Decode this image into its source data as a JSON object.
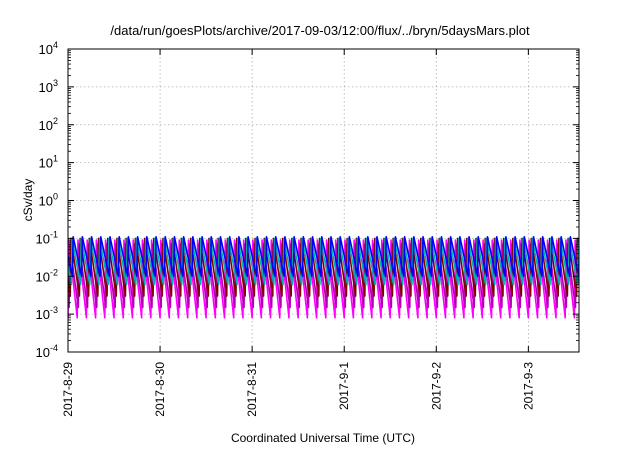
{
  "chart_data": {
    "type": "line",
    "title": "/data/run/goesPlots/archive/2017-09-03/12:00/flux/../bryn/5daysMars.plot",
    "xlabel": "Coordinated Universal Time (UTC)",
    "ylabel": "cSv/day",
    "yscale": "log",
    "ylim": [
      "1e-4",
      "1e4"
    ],
    "y_ticks": [
      {
        "base": "10",
        "exp": "4"
      },
      {
        "base": "10",
        "exp": "3"
      },
      {
        "base": "10",
        "exp": "2"
      },
      {
        "base": "10",
        "exp": "1"
      },
      {
        "base": "10",
        "exp": "0"
      },
      {
        "base": "10",
        "exp": "-1"
      },
      {
        "base": "10",
        "exp": "-2"
      },
      {
        "base": "10",
        "exp": "-3"
      },
      {
        "base": "10",
        "exp": "-4"
      }
    ],
    "x_ticks": [
      "2017-8-29",
      "2017-8-30",
      "2017-8-31",
      "2017-9-1",
      "2017-9-2",
      "2017-9-3"
    ],
    "xlim_days_from_first_tick": [
      0,
      5.55
    ],
    "grid": true,
    "sawtooth_period_days": 0.1,
    "series": [
      {
        "color": "#ff00ff",
        "peak": 0.09,
        "trough": 0.0008
      },
      {
        "color": "#b000b0",
        "peak": 0.07,
        "trough": 0.0015
      },
      {
        "color": "#800000",
        "peak": 0.1,
        "trough": 0.003
      },
      {
        "color": "#00b0b0",
        "peak": 0.1,
        "trough": 0.006
      },
      {
        "color": "#0000ff",
        "peak": 0.11,
        "trough": 0.01
      }
    ]
  }
}
